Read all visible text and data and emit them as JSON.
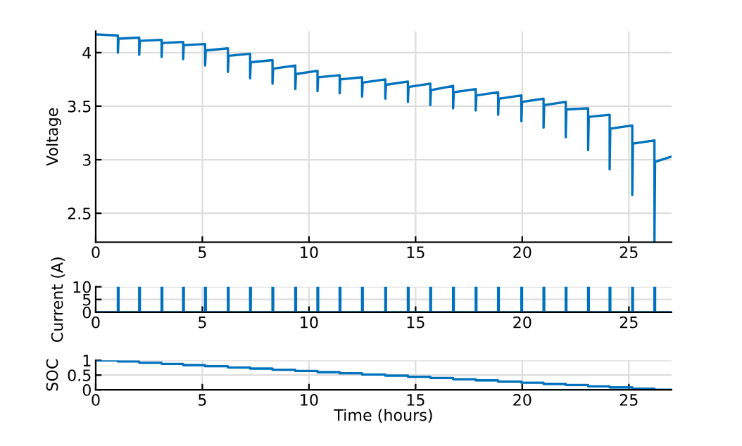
{
  "chart_data": [
    {
      "type": "line",
      "ylabel": "Voltage",
      "color": "#0072bd",
      "xlim": [
        0,
        27
      ],
      "xticks": [
        0,
        5,
        10,
        15,
        20,
        25
      ],
      "ylim": [
        2.23,
        4.2
      ],
      "yticks": [
        2.5,
        3,
        3.5,
        4
      ],
      "grid": true,
      "x": [
        0,
        1.04,
        1.04,
        1.07,
        2.04,
        2.04,
        2.07,
        3.09,
        3.09,
        3.12,
        4.1,
        4.1,
        4.13,
        5.13,
        5.13,
        5.16,
        6.2,
        6.2,
        6.23,
        7.24,
        7.24,
        7.27,
        8.29,
        8.29,
        8.32,
        9.36,
        9.36,
        9.39,
        10.4,
        10.4,
        10.43,
        11.44,
        11.44,
        11.47,
        12.49,
        12.49,
        12.52,
        13.58,
        13.58,
        13.61,
        14.64,
        14.64,
        14.67,
        15.69,
        15.69,
        15.72,
        16.76,
        16.76,
        16.79,
        17.82,
        17.82,
        17.85,
        18.87,
        18.87,
        18.9,
        19.96,
        19.96,
        19.99,
        21,
        21,
        21.03,
        22.04,
        22.04,
        22.07,
        23.09,
        23.09,
        23.12,
        24.1,
        24.1,
        24.13,
        25.16,
        25.16,
        25.19,
        26.2,
        26.2,
        26.23,
        27
      ],
      "values": [
        4.17,
        4.16,
        4.0,
        4.13,
        4.14,
        3.98,
        4.11,
        4.12,
        3.96,
        4.09,
        4.1,
        3.94,
        4.07,
        4.08,
        3.88,
        4.02,
        4.04,
        3.82,
        3.97,
        3.99,
        3.76,
        3.91,
        3.93,
        3.71,
        3.85,
        3.88,
        3.66,
        3.8,
        3.83,
        3.64,
        3.77,
        3.79,
        3.62,
        3.75,
        3.77,
        3.59,
        3.72,
        3.75,
        3.57,
        3.7,
        3.73,
        3.54,
        3.68,
        3.71,
        3.51,
        3.65,
        3.69,
        3.48,
        3.63,
        3.66,
        3.46,
        3.6,
        3.63,
        3.42,
        3.57,
        3.6,
        3.36,
        3.54,
        3.57,
        3.3,
        3.51,
        3.54,
        3.21,
        3.47,
        3.48,
        3.09,
        3.4,
        3.42,
        2.91,
        3.29,
        3.32,
        2.67,
        3.15,
        3.18,
        2.23,
        2.98,
        3.03
      ]
    },
    {
      "type": "line",
      "ylabel": "Current (A)",
      "color": "#0072bd",
      "xlim": [
        0,
        27
      ],
      "xticks": [
        0,
        5,
        10,
        15,
        20,
        25
      ],
      "ylim": [
        0,
        10
      ],
      "yticks": [
        0,
        5,
        10
      ],
      "grid": true,
      "x": [
        0,
        1.04,
        1.04,
        1.07,
        1.07,
        2.04,
        2.04,
        2.07,
        2.07,
        3.09,
        3.09,
        3.12,
        3.12,
        4.1,
        4.1,
        4.13,
        4.13,
        5.13,
        5.13,
        5.16,
        5.16,
        6.2,
        6.2,
        6.23,
        6.23,
        7.24,
        7.24,
        7.27,
        7.27,
        8.29,
        8.29,
        8.32,
        8.32,
        9.36,
        9.36,
        9.39,
        9.39,
        10.4,
        10.4,
        10.43,
        10.43,
        11.44,
        11.44,
        11.47,
        11.47,
        12.49,
        12.49,
        12.52,
        12.52,
        13.58,
        13.58,
        13.61,
        13.61,
        14.64,
        14.64,
        14.67,
        14.67,
        15.69,
        15.69,
        15.72,
        15.72,
        16.76,
        16.76,
        16.79,
        16.79,
        17.82,
        17.82,
        17.85,
        17.85,
        18.87,
        18.87,
        18.9,
        18.9,
        19.96,
        19.96,
        19.99,
        19.99,
        21,
        21,
        21.03,
        21.03,
        22.04,
        22.04,
        22.07,
        22.07,
        23.09,
        23.09,
        23.12,
        23.12,
        24.1,
        24.1,
        24.13,
        24.13,
        25.16,
        25.16,
        25.19,
        25.19,
        26.2,
        26.2,
        26.23,
        26.23,
        27
      ],
      "values": [
        0,
        0,
        10,
        10,
        0,
        0,
        10,
        10,
        0,
        0,
        10,
        10,
        0,
        0,
        10,
        10,
        0,
        0,
        10,
        10,
        0,
        0,
        10,
        10,
        0,
        0,
        10,
        10,
        0,
        0,
        10,
        10,
        0,
        0,
        10,
        10,
        0,
        0,
        10,
        10,
        0,
        0,
        10,
        10,
        0,
        0,
        10,
        10,
        0,
        0,
        10,
        10,
        0,
        0,
        10,
        10,
        0,
        0,
        10,
        10,
        0,
        0,
        10,
        10,
        0,
        0,
        10,
        10,
        0,
        0,
        10,
        10,
        0,
        0,
        10,
        10,
        0,
        0,
        10,
        10,
        0,
        0,
        10,
        10,
        0,
        0,
        10,
        10,
        0,
        0,
        10,
        10,
        0,
        0,
        10,
        10,
        0,
        0,
        10,
        10,
        0,
        0
      ]
    },
    {
      "type": "step",
      "ylabel": "SOC",
      "xlabel": "Time (hours)",
      "color": "#0072bd",
      "xlim": [
        0,
        27
      ],
      "xticks": [
        0,
        5,
        10,
        15,
        20,
        25
      ],
      "ylim": [
        0,
        1
      ],
      "yticks": [
        0,
        0.5,
        1
      ],
      "grid": true,
      "x": [
        0,
        1.04,
        2.04,
        3.09,
        4.1,
        5.13,
        6.2,
        7.24,
        8.29,
        9.36,
        10.4,
        11.44,
        12.49,
        13.58,
        14.64,
        15.69,
        16.76,
        17.82,
        18.87,
        19.96,
        21,
        22.04,
        23.09,
        24.1,
        25.16,
        26.2,
        27
      ],
      "values": [
        1,
        0.96,
        0.92,
        0.88,
        0.84,
        0.8,
        0.76,
        0.72,
        0.68,
        0.64,
        0.6,
        0.56,
        0.52,
        0.48,
        0.44,
        0.4,
        0.36,
        0.32,
        0.28,
        0.24,
        0.2,
        0.16,
        0.12,
        0.08,
        0.04,
        0,
        0
      ]
    }
  ]
}
